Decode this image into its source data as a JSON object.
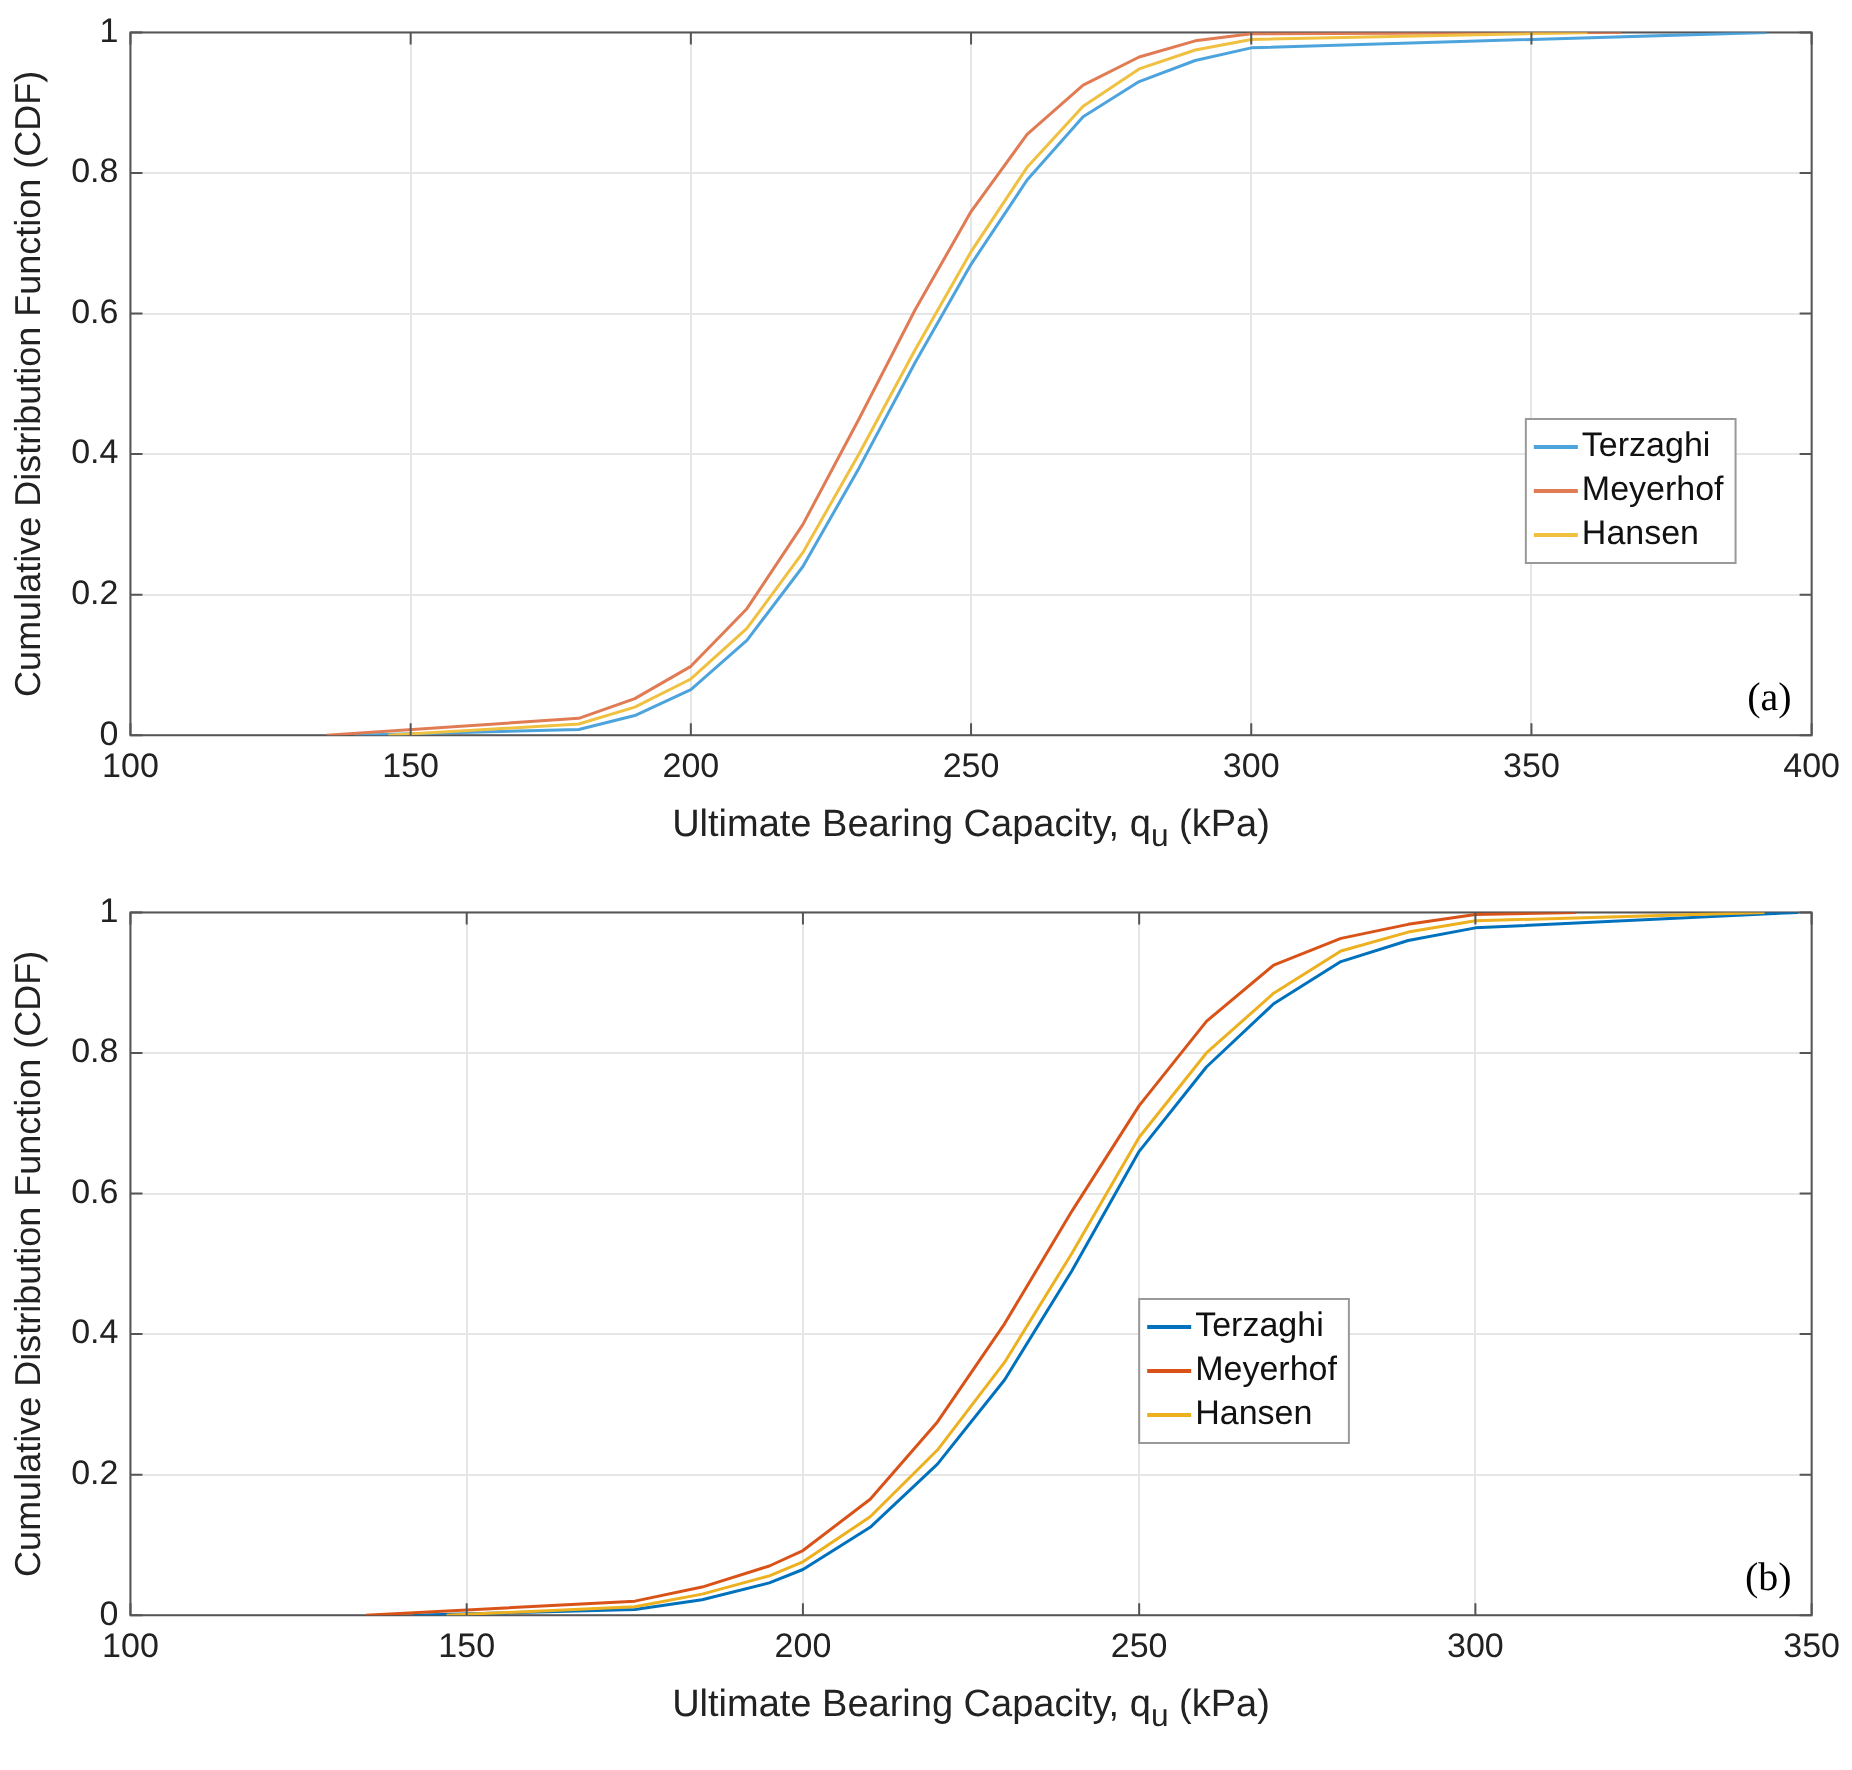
{
  "chart_data": [
    {
      "type": "line",
      "xlabel": "Ultimate Bearing Capacity, q$_{u}$ (kPa)",
      "ylabel": "Cumulative Distribution Function (CDF)",
      "xlim": [
        100,
        400
      ],
      "xticks": [
        100,
        150,
        200,
        250,
        300,
        350,
        400
      ],
      "ylim": [
        0,
        1
      ],
      "yticks": [
        0,
        0.2,
        0.4,
        0.6,
        0.8,
        1
      ],
      "grid": true,
      "legend": "right",
      "annotations": [
        "(a)"
      ],
      "series": [
        {
          "name": "Terzaghi",
          "color": "#4da4dc",
          "x": [
            140,
            180,
            190,
            200,
            210,
            220,
            230,
            240,
            250,
            260,
            270,
            280,
            290,
            300,
            392
          ],
          "values": [
            0,
            0.008,
            0.028,
            0.065,
            0.135,
            0.24,
            0.38,
            0.53,
            0.67,
            0.79,
            0.88,
            0.93,
            0.96,
            0.978,
            1
          ]
        },
        {
          "name": "Meyerhof",
          "color": "#e07b54",
          "x": [
            135,
            180,
            190,
            200,
            210,
            220,
            230,
            240,
            250,
            260,
            270,
            280,
            290,
            300,
            366
          ],
          "values": [
            0,
            0.024,
            0.052,
            0.098,
            0.18,
            0.3,
            0.45,
            0.605,
            0.745,
            0.855,
            0.925,
            0.965,
            0.988,
            0.998,
            1
          ]
        },
        {
          "name": "Hansen",
          "color": "#f0c040",
          "x": [
            146,
            180,
            190,
            200,
            210,
            220,
            230,
            240,
            250,
            260,
            270,
            280,
            290,
            300,
            360
          ],
          "values": [
            0,
            0.016,
            0.04,
            0.08,
            0.152,
            0.26,
            0.4,
            0.548,
            0.688,
            0.808,
            0.895,
            0.948,
            0.975,
            0.99,
            1
          ]
        }
      ]
    },
    {
      "type": "line",
      "xlabel": "Ultimate Bearing Capacity, q$_{u}$ (kPa)",
      "ylabel": "Cumulative Distribution Function (CDF)",
      "xlim": [
        100,
        350
      ],
      "xticks": [
        100,
        150,
        200,
        250,
        300,
        350
      ],
      "ylim": [
        0,
        1
      ],
      "yticks": [
        0,
        0.2,
        0.4,
        0.6,
        0.8,
        1
      ],
      "grid": true,
      "legend": "center",
      "annotations": [
        "(b)"
      ],
      "series": [
        {
          "name": "Terzaghi",
          "color": "#0072bd",
          "x": [
            142,
            175,
            185,
            195,
            200,
            210,
            220,
            230,
            240,
            250,
            260,
            270,
            280,
            290,
            300,
            348
          ],
          "values": [
            0,
            0.008,
            0.022,
            0.046,
            0.065,
            0.125,
            0.215,
            0.335,
            0.49,
            0.66,
            0.78,
            0.87,
            0.93,
            0.96,
            0.978,
            1
          ]
        },
        {
          "name": "Meyerhof",
          "color": "#d95319",
          "x": [
            135,
            175,
            185,
            195,
            200,
            210,
            220,
            230,
            240,
            250,
            260,
            270,
            280,
            290,
            300,
            315
          ],
          "values": [
            0,
            0.02,
            0.04,
            0.07,
            0.092,
            0.165,
            0.275,
            0.415,
            0.575,
            0.725,
            0.845,
            0.925,
            0.963,
            0.983,
            0.997,
            1
          ]
        },
        {
          "name": "Hansen",
          "color": "#edb120",
          "x": [
            147,
            175,
            185,
            195,
            200,
            210,
            220,
            230,
            240,
            250,
            260,
            270,
            280,
            290,
            300,
            343
          ],
          "values": [
            0,
            0.012,
            0.03,
            0.056,
            0.076,
            0.14,
            0.235,
            0.36,
            0.515,
            0.68,
            0.8,
            0.885,
            0.945,
            0.972,
            0.988,
            1
          ]
        }
      ]
    }
  ]
}
